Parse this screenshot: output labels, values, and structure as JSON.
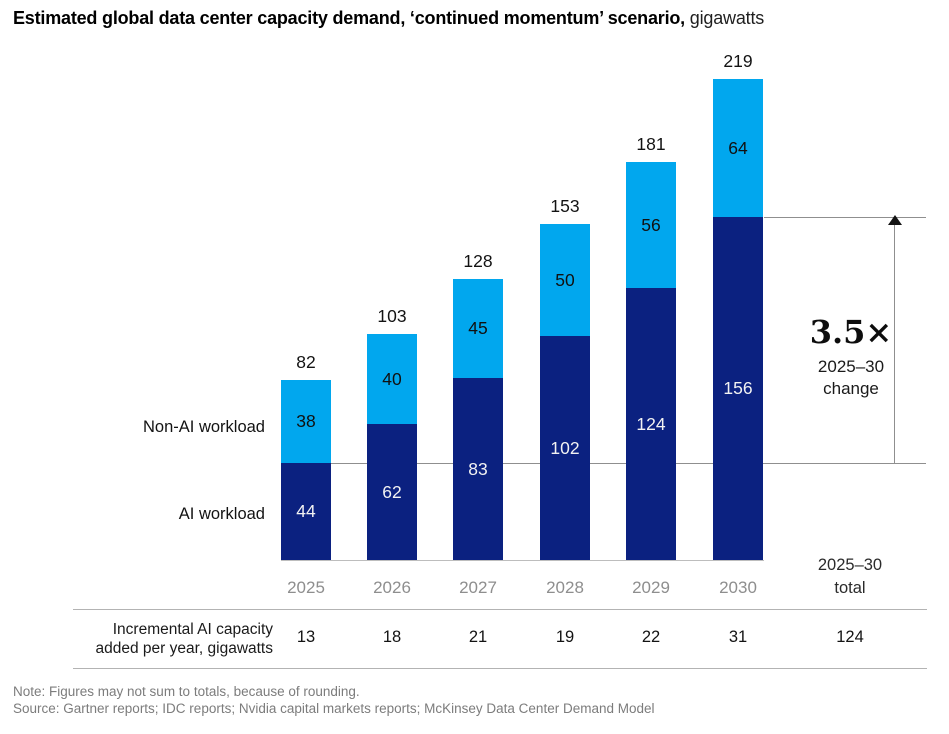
{
  "title": {
    "main": "Estimated global data center capacity demand, ‘continued momentum’ scenario,",
    "unit": "gigawatts"
  },
  "chart_data": {
    "type": "bar",
    "stacked": true,
    "title": "Estimated global data center capacity demand, ‘continued momentum’ scenario, gigawatts",
    "categories": [
      "2025",
      "2026",
      "2027",
      "2028",
      "2029",
      "2030"
    ],
    "series": [
      {
        "name": "AI workload",
        "color": "#0B2180",
        "label_color": "#F2F2F2",
        "values": [
          44,
          62,
          83,
          102,
          124,
          156
        ]
      },
      {
        "name": "Non-AI workload",
        "color": "#01A7EE",
        "label_color": "#111111",
        "values": [
          38,
          40,
          45,
          50,
          56,
          64
        ]
      }
    ],
    "totals": [
      82,
      103,
      128,
      153,
      181,
      219
    ],
    "ylim": [
      0,
      219
    ],
    "grid": false,
    "legend_position": "left-of-first-bar",
    "annotation": {
      "multiplier": "3.5×",
      "period": "2025–30",
      "word": "change",
      "from_value": 44,
      "to_value": 156
    },
    "table": {
      "row_label_line1": "Incremental AI capacity",
      "row_label_line2": "added per year, gigawatts",
      "values": [
        13,
        18,
        21,
        19,
        22,
        31
      ],
      "total": 124,
      "total_header_line1": "2025–30",
      "total_header_line2": "total"
    },
    "note": "Note: Figures may not sum to totals, because of rounding.",
    "source": "Source: Gartner reports; IDC reports; Nvidia capital markets reports; McKinsey Data Center Demand Model"
  },
  "colors": {
    "ai_bar": "#0B2180",
    "non_ai_bar": "#01A7EE",
    "reference_line": "#8F8F8F",
    "table_rule": "#B3B3B3",
    "year_label": "#8E8E8E",
    "note_text": "#7C7C7C"
  }
}
